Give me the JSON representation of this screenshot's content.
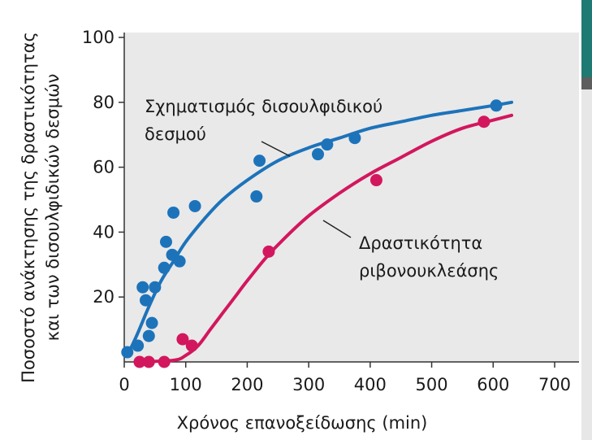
{
  "colors": {
    "plot_background": "#e9e9e9",
    "disulfide_series": "#1d73ba",
    "rnase_series": "#d2175e",
    "axis": "#333333",
    "side_teal": "#1f7a73",
    "side_dark": "#5e5e5e",
    "side_light": "#e7e7e7"
  },
  "chart_data": {
    "type": "scatter",
    "title": "",
    "xlabel": "Χρόνος επανοξείδωσης  (min)",
    "ylabel_lines": [
      "Ποσοστό ανάκτησης της δραστικότητας",
      "και των δισουλφιδικών δεσμών"
    ],
    "xlim": [
      0,
      700
    ],
    "ylim": [
      0,
      100
    ],
    "xticks": [
      "0",
      "100",
      "200",
      "300",
      "400",
      "500",
      "600",
      "700"
    ],
    "yticks": [
      "20",
      "40",
      "60",
      "80",
      "100"
    ],
    "grid": false,
    "series": [
      {
        "name_lines": [
          "Σχηματισμός δισουλφιδικού",
          "δεσμού"
        ],
        "color": "#1d73ba",
        "points": [
          [
            5,
            3
          ],
          [
            22,
            5
          ],
          [
            30,
            23
          ],
          [
            35,
            19
          ],
          [
            40,
            8
          ],
          [
            45,
            12
          ],
          [
            50,
            23
          ],
          [
            65,
            29
          ],
          [
            68,
            37
          ],
          [
            78,
            33
          ],
          [
            80,
            46
          ],
          [
            90,
            31
          ],
          [
            115,
            48
          ],
          [
            215,
            51
          ],
          [
            220,
            62
          ],
          [
            315,
            64
          ],
          [
            330,
            67
          ],
          [
            375,
            69
          ],
          [
            605,
            79
          ]
        ],
        "fit": [
          [
            5,
            2
          ],
          [
            20,
            8
          ],
          [
            40,
            17
          ],
          [
            60,
            25
          ],
          [
            80,
            31
          ],
          [
            100,
            37
          ],
          [
            130,
            44
          ],
          [
            160,
            50
          ],
          [
            200,
            56
          ],
          [
            250,
            62
          ],
          [
            300,
            66
          ],
          [
            350,
            69
          ],
          [
            400,
            72
          ],
          [
            450,
            74
          ],
          [
            500,
            76
          ],
          [
            550,
            77.5
          ],
          [
            600,
            79
          ],
          [
            630,
            80
          ]
        ]
      },
      {
        "name_lines": [
          "Δραστικότητα",
          "ριβονουκλεάσης"
        ],
        "color": "#d2175e",
        "points": [
          [
            25,
            0
          ],
          [
            40,
            0
          ],
          [
            65,
            0
          ],
          [
            95,
            7
          ],
          [
            110,
            5
          ],
          [
            235,
            34
          ],
          [
            410,
            56
          ],
          [
            585,
            74
          ]
        ],
        "fit": [
          [
            20,
            0
          ],
          [
            80,
            0.5
          ],
          [
            100,
            2
          ],
          [
            120,
            5
          ],
          [
            140,
            10
          ],
          [
            160,
            15
          ],
          [
            180,
            20
          ],
          [
            200,
            25
          ],
          [
            230,
            32
          ],
          [
            260,
            38
          ],
          [
            300,
            45
          ],
          [
            350,
            52
          ],
          [
            400,
            58
          ],
          [
            450,
            63
          ],
          [
            500,
            68
          ],
          [
            550,
            72
          ],
          [
            600,
            74.5
          ],
          [
            630,
            76
          ]
        ]
      }
    ]
  }
}
